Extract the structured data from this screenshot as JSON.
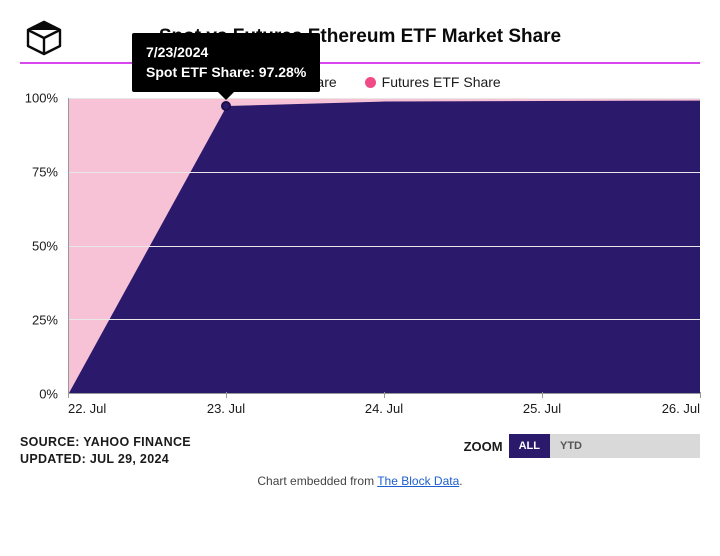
{
  "title": "Spot vs Futures Ethereum ETF Market Share",
  "legend": {
    "series": [
      {
        "label": "Spot ETF Share",
        "color": "#2b1a6b"
      },
      {
        "label": "Futures ETF Share",
        "color": "#f04b87"
      }
    ]
  },
  "chart": {
    "type": "area-stacked",
    "background_color": "#ffffff",
    "grid_color": "#e8e8e8",
    "axis_color": "#999999",
    "y": {
      "min": 0,
      "max": 100,
      "ticks": [
        0,
        25,
        50,
        75,
        100
      ],
      "suffix": "%",
      "label_fontsize": 13
    },
    "x": {
      "categories": [
        "22. Jul",
        "23. Jul",
        "24. Jul",
        "25. Jul",
        "26. Jul"
      ],
      "label_fontsize": 13
    },
    "series": [
      {
        "name": "Spot ETF Share",
        "color": "#2b1a6b",
        "values": [
          0,
          97.28,
          98.8,
          99.0,
          99.1
        ]
      },
      {
        "name": "Futures ETF Share",
        "color": "#f7c2d6",
        "values": [
          100,
          2.72,
          1.2,
          1.0,
          0.9
        ]
      }
    ],
    "tooltip": {
      "date": "7/23/2024",
      "line": "Spot ETF Share: 97.28%",
      "at_index": 1,
      "at_value": 97.28,
      "marker_color": "#2b1a6b"
    }
  },
  "footer": {
    "source_line1": "SOURCE: YAHOO FINANCE",
    "source_line2": "UPDATED: JUL 29, 2024",
    "zoom_label": "ZOOM",
    "zoom_buttons": [
      {
        "label": "ALL",
        "active": true
      },
      {
        "label": "YTD",
        "active": false
      },
      {
        "label": "",
        "active": false
      },
      {
        "label": "",
        "active": false
      },
      {
        "label": "",
        "active": false
      }
    ]
  },
  "embed": {
    "prefix": "Chart embedded from ",
    "link_text": "The Block Data",
    "suffix": "."
  },
  "colors": {
    "divider": "#d946ef"
  }
}
